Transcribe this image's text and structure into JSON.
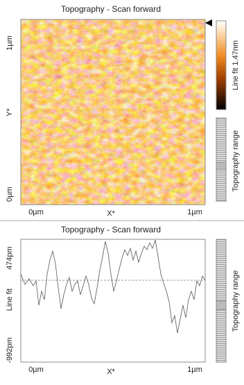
{
  "top_panel": {
    "title": "Topography - Scan forward",
    "y_top": "1µm",
    "y_label": "Y*",
    "y_bottom": "0µm",
    "x_left": "0µm",
    "x_label": "X*",
    "x_right": "1µm",
    "colorbar_label": "Line fit 1.47nm",
    "range_label": "Topography range"
  },
  "bottom_panel": {
    "title": "Topography - Scan forward",
    "y_top": "474pm",
    "y_label": "Line fit",
    "y_bottom": "-992pm",
    "x_left": "0µm",
    "x_label": "X*",
    "x_right": "1µm",
    "range_label": "Topography range"
  }
}
